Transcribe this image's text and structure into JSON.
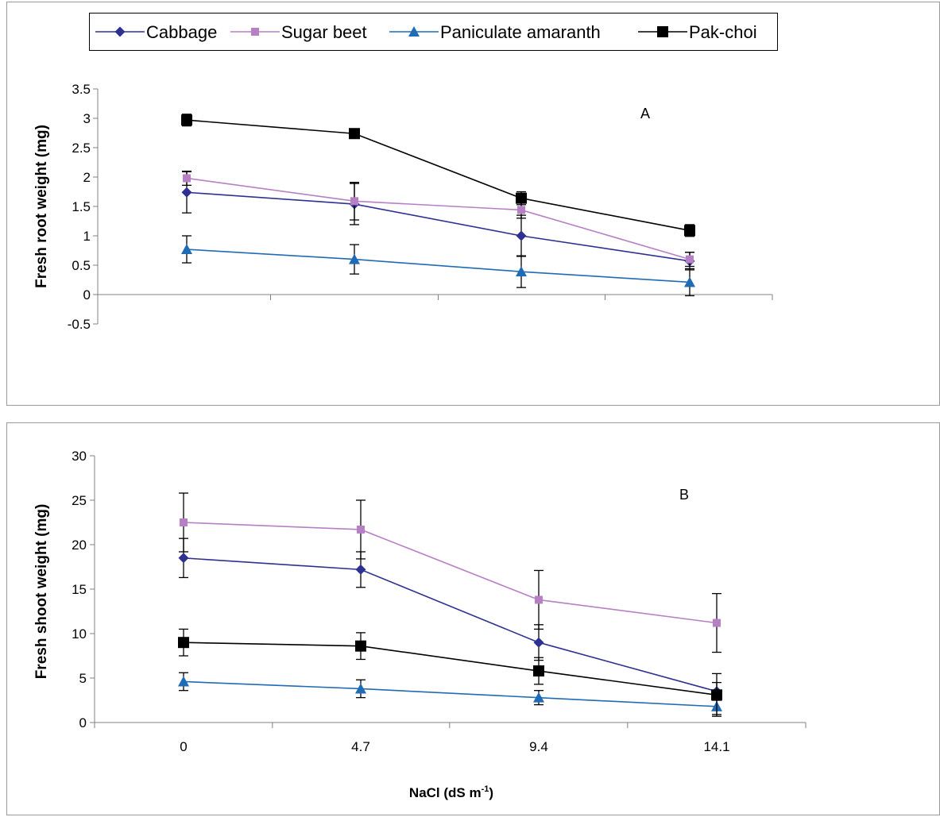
{
  "legend": [
    {
      "name": "Cabbage",
      "color": "#2E3192",
      "marker": "diamond"
    },
    {
      "name": "Sugar beet",
      "color": "#B77FC4",
      "marker": "square"
    },
    {
      "name": "Paniculate amaranth",
      "color": "#1F6BB5",
      "marker": "triangle"
    },
    {
      "name": "Pak-choi",
      "color": "#000000",
      "marker": "square-filled"
    }
  ],
  "xlabel_main": "NaCl (dS m",
  "xlabel_sup": "-1",
  "xlabel_tail": ")",
  "chart_data": [
    {
      "type": "line",
      "panel_label": "A",
      "ylabel": "Fresh root weight (mg)",
      "ylim": [
        -0.5,
        3.5
      ],
      "yticks": [
        "3.5",
        "3",
        "2.5",
        "2",
        "1.5",
        "1",
        "0.5",
        "0",
        "-0.5"
      ],
      "categories": [
        "0",
        "4.7",
        "9.4",
        "14.1"
      ],
      "series": [
        {
          "name": "Cabbage",
          "values": [
            1.74,
            1.54,
            1.0,
            0.57
          ],
          "err": [
            0.35,
            0.35,
            0.35,
            0.15
          ]
        },
        {
          "name": "Sugar beet",
          "values": [
            1.98,
            1.59,
            1.44,
            0.6
          ],
          "err": [
            0.12,
            0.32,
            0.14,
            0.12
          ]
        },
        {
          "name": "Paniculate amaranth",
          "values": [
            0.77,
            0.6,
            0.39,
            0.21
          ],
          "err": [
            0.23,
            0.25,
            0.27,
            0.23
          ]
        },
        {
          "name": "Pak-choi",
          "values": [
            2.97,
            2.74,
            1.64,
            1.09
          ],
          "err": [
            0.1,
            0.08,
            0.11,
            0.1
          ]
        }
      ]
    },
    {
      "type": "line",
      "panel_label": "B",
      "ylabel": "Fresh shoot weight (mg)",
      "ylim": [
        0,
        30
      ],
      "yticks": [
        "30",
        "25",
        "20",
        "15",
        "10",
        "5",
        "0"
      ],
      "categories": [
        "0",
        "4.7",
        "9.4",
        "14.1"
      ],
      "show_xtick_labels": true,
      "series": [
        {
          "name": "Cabbage",
          "values": [
            18.5,
            17.2,
            9.0,
            3.5
          ],
          "err": [
            2.2,
            2.0,
            2.0,
            1.0
          ]
        },
        {
          "name": "Sugar beet",
          "values": [
            22.5,
            21.7,
            13.8,
            11.2
          ],
          "err": [
            3.3,
            3.3,
            3.3,
            3.3
          ]
        },
        {
          "name": "Paniculate amaranth",
          "values": [
            4.6,
            3.8,
            2.8,
            1.8
          ],
          "err": [
            1.0,
            1.0,
            0.8,
            0.9
          ]
        },
        {
          "name": "Pak-choi",
          "values": [
            9.0,
            8.6,
            5.8,
            3.1
          ],
          "err": [
            1.5,
            1.5,
            1.5,
            2.4
          ]
        }
      ]
    }
  ]
}
